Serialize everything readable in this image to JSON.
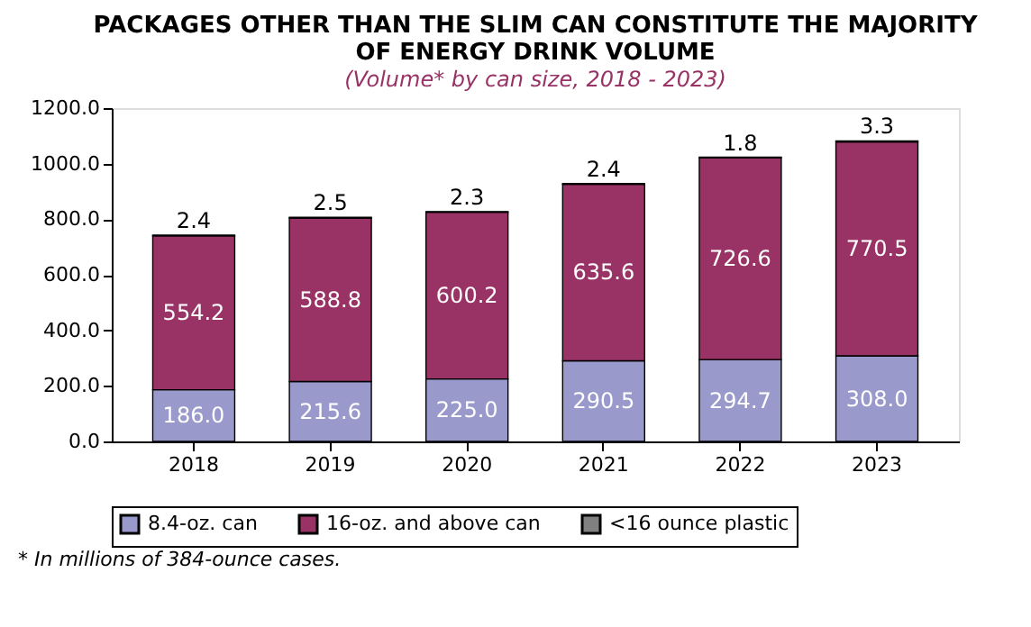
{
  "chart_data": {
    "type": "bar",
    "stacked": true,
    "title": [
      "PACKAGES OTHER THAN THE SLIM CAN CONSTITUTE THE MAJORITY",
      "OF ENERGY DRINK VOLUME"
    ],
    "subtitle": "(Volume* by can size, 2018 - 2023)",
    "categories": [
      "2018",
      "2019",
      "2020",
      "2021",
      "2022",
      "2023"
    ],
    "series": [
      {
        "name": "8.4-oz. can",
        "color": "#9999cc",
        "values": [
          186.0,
          215.6,
          225.0,
          290.5,
          294.7,
          308.0
        ],
        "value_labels": [
          "186.0",
          "215.6",
          "225.0",
          "290.5",
          "294.7",
          "308.0"
        ]
      },
      {
        "name": "16-oz. and above can",
        "color": "#993366",
        "values": [
          554.2,
          588.8,
          600.2,
          635.6,
          726.6,
          770.5
        ],
        "value_labels": [
          "554.2",
          "588.8",
          "600.2",
          "635.6",
          "726.6",
          "770.5"
        ]
      },
      {
        "name": "<16 ounce plastic",
        "color": "#808080",
        "values": [
          2.4,
          2.5,
          2.3,
          2.4,
          1.8,
          3.3
        ],
        "value_labels": [
          "2.4",
          "2.5",
          "2.3",
          "2.4",
          "1.8",
          "3.3"
        ]
      }
    ],
    "ylim": [
      0,
      1200
    ],
    "yticks": [
      {
        "value": 0,
        "label": "0.0"
      },
      {
        "value": 200,
        "label": "200.0"
      },
      {
        "value": 400,
        "label": "400.0"
      },
      {
        "value": 600,
        "label": "600.0"
      },
      {
        "value": 800,
        "label": "800.0"
      },
      {
        "value": 1000,
        "label": "1000.0"
      },
      {
        "value": 1200,
        "label": "1200.0"
      }
    ],
    "grid": false,
    "legend": "bottom",
    "annotations": [
      "* In millions of 384-ounce cases."
    ]
  }
}
